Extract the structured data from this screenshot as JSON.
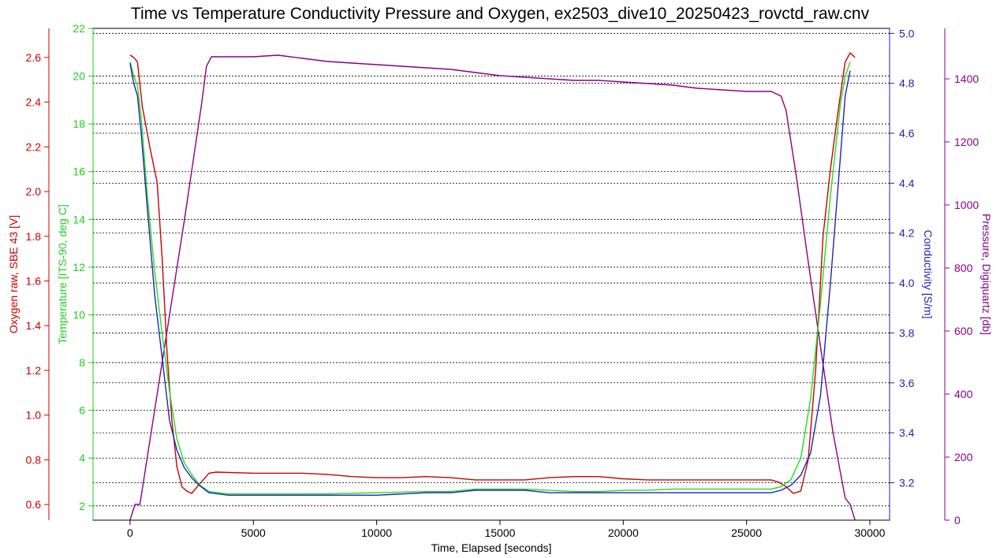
{
  "chart_data": {
    "type": "line",
    "title": "Time vs Temperature Conductivity Pressure and Oxygen, ex2503_dive10_20250423_rovctd_raw.cnv",
    "xlabel": "Time, Elapsed [seconds]",
    "xlim": [
      -1500,
      30800
    ],
    "x_ticks": [
      0,
      5000,
      10000,
      15000,
      20000,
      25000,
      30000
    ],
    "grid": true,
    "axes": {
      "oxygen": {
        "label": "Oxygen raw, SBE 43 [V]",
        "color": "#cc0000",
        "side": "left",
        "range": [
          0.53,
          2.73
        ],
        "ticks": [
          0.6,
          0.8,
          1.0,
          1.2,
          1.4,
          1.6,
          1.8,
          2.0,
          2.2,
          2.4,
          2.6
        ],
        "tick_labels": [
          "0.6",
          "0.8",
          "1.0",
          "1.2",
          "1.4",
          "1.6",
          "1.8",
          "2.0",
          "2.2",
          "2.4",
          "2.6"
        ]
      },
      "temperature": {
        "label": "Temperature [ITS-90, deg C]",
        "color": "#22dd22",
        "side": "left",
        "range": [
          1.4,
          22.0
        ],
        "ticks": [
          2,
          4,
          6,
          8,
          10,
          12,
          14,
          16,
          18,
          20,
          22
        ],
        "tick_labels": [
          "2",
          "4",
          "6",
          "8",
          "10",
          "12",
          "14",
          "16",
          "18",
          "20",
          "22"
        ]
      },
      "conductivity": {
        "label": "Conductivity [S/m]",
        "color": "#2222bb",
        "side": "right",
        "range": [
          3.05,
          5.02
        ],
        "ticks": [
          3.2,
          3.4,
          3.6,
          3.8,
          4.0,
          4.2,
          4.4,
          4.6,
          4.8,
          5.0
        ],
        "tick_labels": [
          "3.2",
          "3.4",
          "3.6",
          "3.8",
          "4.0",
          "4.2",
          "4.4",
          "4.6",
          "4.8",
          "5.0"
        ]
      },
      "pressure": {
        "label": "Pressure, Digiquartz [db]",
        "color": "#880088",
        "side": "right",
        "range": [
          0,
          1560
        ],
        "ticks": [
          0,
          200,
          400,
          600,
          800,
          1000,
          1200,
          1400
        ],
        "tick_labels": [
          "0",
          "200",
          "400",
          "600",
          "800",
          "1000",
          "1200",
          "1400"
        ]
      }
    },
    "series": [
      {
        "axis": "pressure",
        "color": "#880088",
        "x": [
          0,
          200,
          400,
          800,
          1500,
          2200,
          2900,
          3100,
          3300,
          5000,
          6000,
          7000,
          8000,
          9000,
          10000,
          11000,
          12000,
          13000,
          14000,
          15000,
          16000,
          17000,
          18000,
          19000,
          20000,
          21000,
          22000,
          23000,
          24000,
          25000,
          26000,
          26400,
          26600,
          27000,
          27500,
          28000,
          28500,
          29000,
          29200,
          29400
        ],
        "y": [
          0,
          50,
          50,
          250,
          600,
          950,
          1320,
          1440,
          1470,
          1470,
          1475,
          1465,
          1455,
          1450,
          1445,
          1440,
          1435,
          1430,
          1420,
          1410,
          1405,
          1400,
          1395,
          1395,
          1390,
          1385,
          1380,
          1370,
          1365,
          1360,
          1360,
          1345,
          1300,
          1100,
          820,
          550,
          280,
          70,
          50,
          0
        ]
      },
      {
        "axis": "oxygen",
        "color": "#cc0000",
        "x": [
          0,
          150,
          300,
          500,
          800,
          1100,
          1300,
          1500,
          1700,
          1900,
          2100,
          2300,
          2500,
          2800,
          3200,
          3500,
          5000,
          6000,
          7000,
          8000,
          9000,
          10000,
          11000,
          12000,
          13000,
          14000,
          15000,
          16000,
          17000,
          18000,
          19000,
          20000,
          21000,
          22000,
          23000,
          24000,
          25000,
          26000,
          26300,
          26600,
          26900,
          27200,
          27500,
          27800,
          28100,
          28400,
          28700,
          29000,
          29200,
          29400
        ],
        "y": [
          2.61,
          2.6,
          2.58,
          2.38,
          2.2,
          2.04,
          1.7,
          1.28,
          0.97,
          0.77,
          0.68,
          0.66,
          0.65,
          0.69,
          0.74,
          0.745,
          0.74,
          0.74,
          0.74,
          0.735,
          0.725,
          0.72,
          0.72,
          0.725,
          0.72,
          0.71,
          0.71,
          0.71,
          0.72,
          0.725,
          0.725,
          0.715,
          0.71,
          0.71,
          0.71,
          0.71,
          0.71,
          0.71,
          0.7,
          0.68,
          0.65,
          0.66,
          0.8,
          1.2,
          1.8,
          2.1,
          2.35,
          2.58,
          2.62,
          2.6
        ]
      },
      {
        "axis": "temperature",
        "color": "#22dd22",
        "x": [
          0,
          150,
          300,
          450,
          700,
          1000,
          1300,
          1600,
          1900,
          2200,
          2500,
          2800,
          3200,
          4000,
          6000,
          8000,
          10000,
          12000,
          13000,
          14000,
          15000,
          16000,
          17000,
          18000,
          19000,
          20000,
          21000,
          22000,
          23000,
          24000,
          25000,
          26000,
          26400,
          26800,
          27200,
          27600,
          28000,
          28400,
          28800,
          29000,
          29200
        ],
        "y": [
          20.6,
          20.0,
          19.6,
          18.3,
          15.0,
          11.8,
          9.2,
          6.8,
          4.8,
          3.8,
          3.3,
          2.9,
          2.6,
          2.5,
          2.5,
          2.5,
          2.55,
          2.6,
          2.6,
          2.7,
          2.7,
          2.7,
          2.65,
          2.6,
          2.6,
          2.65,
          2.65,
          2.7,
          2.7,
          2.7,
          2.7,
          2.7,
          2.8,
          3.1,
          4.0,
          6.5,
          10.5,
          15.0,
          18.8,
          20.0,
          20.6
        ]
      },
      {
        "axis": "conductivity",
        "color": "#2222bb",
        "x": [
          0,
          150,
          300,
          450,
          700,
          1000,
          1300,
          1600,
          1900,
          2200,
          2500,
          2800,
          3200,
          4000,
          6000,
          8000,
          10000,
          12000,
          13000,
          14000,
          15000,
          16000,
          17000,
          18000,
          19000,
          20000,
          21000,
          22000,
          23000,
          24000,
          25000,
          26000,
          26400,
          26800,
          27200,
          27600,
          28000,
          28400,
          28800,
          29000,
          29200
        ],
        "y": [
          4.88,
          4.8,
          4.75,
          4.6,
          4.3,
          3.95,
          3.7,
          3.45,
          3.33,
          3.26,
          3.22,
          3.19,
          3.16,
          3.15,
          3.15,
          3.15,
          3.15,
          3.16,
          3.16,
          3.17,
          3.17,
          3.17,
          3.16,
          3.16,
          3.16,
          3.16,
          3.16,
          3.16,
          3.16,
          3.16,
          3.16,
          3.16,
          3.17,
          3.19,
          3.23,
          3.32,
          3.55,
          4.0,
          4.5,
          4.75,
          4.85
        ]
      }
    ]
  }
}
